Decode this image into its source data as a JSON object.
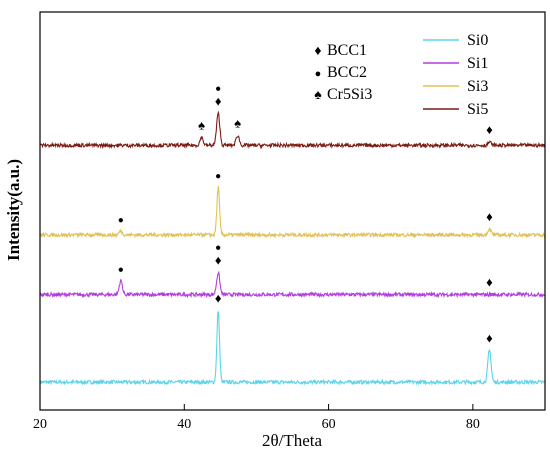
{
  "chart_data": {
    "type": "line",
    "xlabel": "2θ/Theta",
    "ylabel": "Intensity(a.u.)",
    "xlim": [
      20,
      90
    ],
    "x_ticks": [
      20,
      40,
      60,
      80
    ],
    "y_ticks_shown": false,
    "grid": false,
    "legend_position": "top-right",
    "series": [
      {
        "name": "Si0",
        "color": "#5bd4ea",
        "baseline": 0.07,
        "peaks": [
          {
            "x": 44.7,
            "height": 0.18
          },
          {
            "x": 82.3,
            "height": 0.08
          }
        ]
      },
      {
        "name": "Si1",
        "color": "#b23ee0",
        "baseline": 0.29,
        "peaks": [
          {
            "x": 31.2,
            "height": 0.035
          },
          {
            "x": 44.7,
            "height": 0.055
          }
        ]
      },
      {
        "name": "Si3",
        "color": "#e0c25a",
        "baseline": 0.44,
        "peaks": [
          {
            "x": 31.2,
            "height": 0.01
          },
          {
            "x": 44.7,
            "height": 0.12
          },
          {
            "x": 82.3,
            "height": 0.015
          }
        ]
      },
      {
        "name": "Si5",
        "color": "#7b1d14",
        "baseline": 0.665,
        "peaks": [
          {
            "x": 42.4,
            "height": 0.02
          },
          {
            "x": 44.7,
            "height": 0.08
          },
          {
            "x": 47.4,
            "height": 0.025
          },
          {
            "x": 82.3,
            "height": 0.008
          }
        ]
      }
    ],
    "phase_legend": [
      {
        "symbol": "♦",
        "label": "BCC1"
      },
      {
        "symbol": "●",
        "label": "BCC2"
      },
      {
        "symbol": "♠",
        "label": "Cr5Si3"
      }
    ],
    "peak_markers": [
      {
        "series": "Si0",
        "x": 44.7,
        "symbols": [
          "♦"
        ]
      },
      {
        "series": "Si0",
        "x": 82.3,
        "symbols": [
          "♦"
        ]
      },
      {
        "series": "Si1",
        "x": 31.2,
        "symbols": [
          "●"
        ]
      },
      {
        "series": "Si1",
        "x": 44.7,
        "symbols": [
          "●",
          "♦"
        ]
      },
      {
        "series": "Si1",
        "x": 82.3,
        "symbols": [
          "♦"
        ]
      },
      {
        "series": "Si3",
        "x": 31.2,
        "symbols": [
          "●"
        ]
      },
      {
        "series": "Si3",
        "x": 44.7,
        "symbols": [
          "●"
        ]
      },
      {
        "series": "Si3",
        "x": 82.3,
        "symbols": [
          "♦"
        ]
      },
      {
        "series": "Si5",
        "x": 42.4,
        "symbols": [
          "♠"
        ]
      },
      {
        "series": "Si5",
        "x": 44.7,
        "symbols": [
          "●",
          "♦"
        ]
      },
      {
        "series": "Si5",
        "x": 47.4,
        "symbols": [
          "♠"
        ]
      },
      {
        "series": "Si5",
        "x": 82.3,
        "symbols": [
          "♦"
        ]
      }
    ]
  }
}
